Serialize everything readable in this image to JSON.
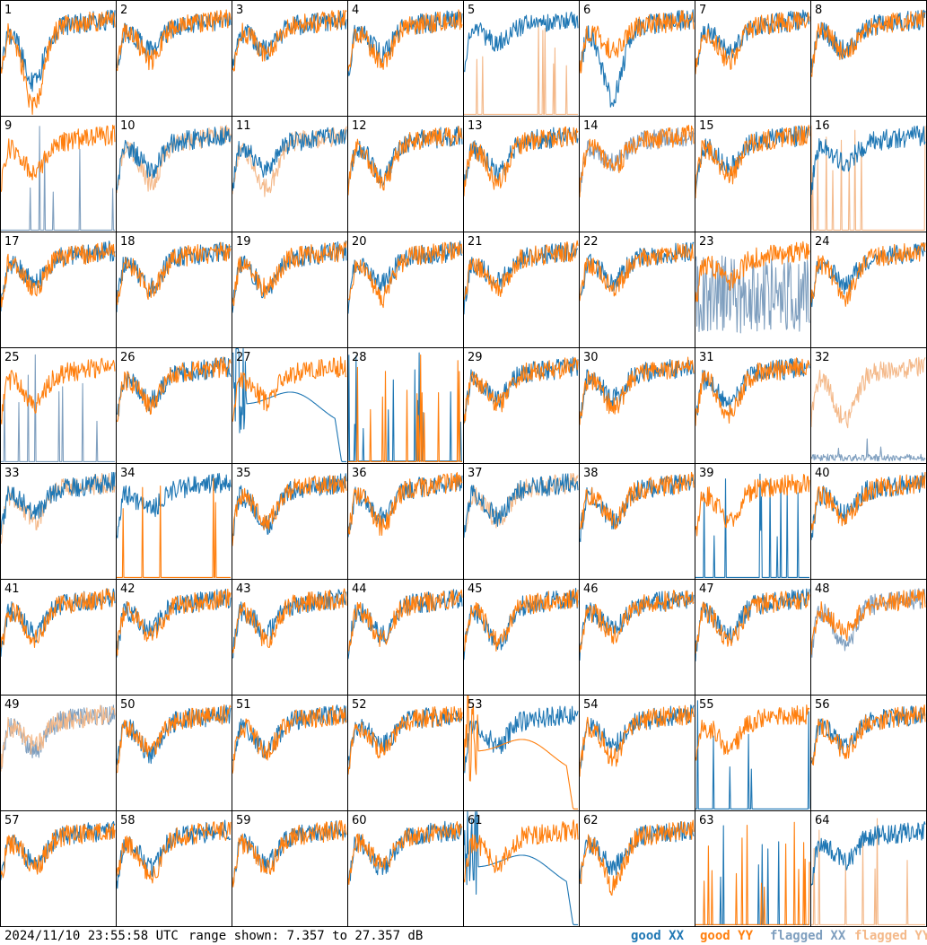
{
  "chart_data": {
    "type": "line",
    "panel_labels": [
      "1",
      "2",
      "3",
      "4",
      "5",
      "6",
      "7",
      "8",
      "9",
      "10",
      "11",
      "12",
      "13",
      "14",
      "15",
      "16",
      "17",
      "18",
      "19",
      "20",
      "21",
      "22",
      "23",
      "24",
      "25",
      "26",
      "27",
      "28",
      "29",
      "30",
      "31",
      "32",
      "33",
      "34",
      "35",
      "36",
      "37",
      "38",
      "39",
      "40",
      "41",
      "42",
      "43",
      "44",
      "45",
      "46",
      "47",
      "48",
      "49",
      "50",
      "51",
      "52",
      "53",
      "54",
      "55",
      "56",
      "57",
      "58",
      "59",
      "60",
      "61",
      "62",
      "63",
      "64"
    ],
    "ylim": [
      7.357,
      27.357
    ],
    "legend": [
      "good XX",
      "good YY",
      "flagged XX",
      "flagged YY"
    ],
    "colors": {
      "good_xx": "#1f77b4",
      "good_yy": "#ff7f0e",
      "flagged_xx": "#7f9fbf",
      "flagged_yy": "#f4b98a"
    },
    "panels": [
      {
        "xx": "good",
        "yy": "good",
        "xxshape": "dip",
        "yyshape": "dip",
        "xxd": 0.7,
        "yyd": 1.0
      },
      {
        "xx": "good",
        "yy": "good",
        "xxshape": "normal",
        "yyshape": "normal",
        "xxd": 0.35,
        "yyd": 0.5
      },
      {
        "xx": "good",
        "yy": "good",
        "xxshape": "normal",
        "yyshape": "normal",
        "xxd": 0.35,
        "yyd": 0.4
      },
      {
        "xx": "good",
        "yy": "good",
        "xxshape": "normal",
        "yyshape": "normal",
        "xxd": 0.4,
        "yyd": 0.55
      },
      {
        "xx": "good",
        "yy": "flagged",
        "xxshape": "normal",
        "yyshape": "spikes",
        "xxd": 0.2,
        "yyd": 0.0
      },
      {
        "xx": "good",
        "yy": "good",
        "xxshape": "dip",
        "yyshape": "normal",
        "xxd": 0.9,
        "yyd": 0.35
      },
      {
        "xx": "good",
        "yy": "good",
        "xxshape": "normal",
        "yyshape": "normal",
        "xxd": 0.35,
        "yyd": 0.5
      },
      {
        "xx": "good",
        "yy": "good",
        "xxshape": "normal",
        "yyshape": "normal",
        "xxd": 0.35,
        "yyd": 0.4
      },
      {
        "xx": "flagged",
        "yy": "good",
        "xxshape": "spikes",
        "yyshape": "normal",
        "xxd": 0.0,
        "yyd": 0.45
      },
      {
        "xx": "good",
        "yy": "flagged",
        "xxshape": "normal",
        "yyshape": "normal",
        "xxd": 0.4,
        "yyd": 0.6
      },
      {
        "xx": "good",
        "yy": "flagged",
        "xxshape": "normal",
        "yyshape": "normal",
        "xxd": 0.4,
        "yyd": 0.7
      },
      {
        "xx": "good",
        "yy": "good",
        "xxshape": "normal",
        "yyshape": "normal",
        "xxd": 0.5,
        "yyd": 0.6
      },
      {
        "xx": "good",
        "yy": "good",
        "xxshape": "normal",
        "yyshape": "normal",
        "xxd": 0.45,
        "yyd": 0.6
      },
      {
        "xx": "flagged",
        "yy": "good",
        "xxshape": "normal",
        "yyshape": "normal",
        "xxd": 0.3,
        "yyd": 0.35
      },
      {
        "xx": "good",
        "yy": "good",
        "xxshape": "normal",
        "yyshape": "normal",
        "xxd": 0.35,
        "yyd": 0.5
      },
      {
        "xx": "good",
        "yy": "flagged",
        "xxshape": "normal",
        "yyshape": "spikes",
        "xxd": 0.3,
        "yyd": 0.0
      },
      {
        "xx": "good",
        "yy": "good",
        "xxshape": "normal",
        "yyshape": "normal",
        "xxd": 0.35,
        "yyd": 0.45
      },
      {
        "xx": "good",
        "yy": "good",
        "xxshape": "normal",
        "yyshape": "normal",
        "xxd": 0.45,
        "yyd": 0.5
      },
      {
        "xx": "good",
        "yy": "good",
        "xxshape": "normal",
        "yyshape": "normal",
        "xxd": 0.5,
        "yyd": 0.45
      },
      {
        "xx": "good",
        "yy": "good",
        "xxshape": "normal",
        "yyshape": "normal",
        "xxd": 0.35,
        "yyd": 0.6
      },
      {
        "xx": "good",
        "yy": "good",
        "xxshape": "normal",
        "yyshape": "normal",
        "xxd": 0.35,
        "yyd": 0.45
      },
      {
        "xx": "good",
        "yy": "good",
        "xxshape": "normal",
        "yyshape": "normal",
        "xxd": 0.35,
        "yyd": 0.45
      },
      {
        "xx": "flagged",
        "yy": "good",
        "xxshape": "noisy",
        "yyshape": "normal",
        "xxd": 0.0,
        "yyd": 0.35
      },
      {
        "xx": "good",
        "yy": "good",
        "xxshape": "normal",
        "yyshape": "normal",
        "xxd": 0.4,
        "yyd": 0.6
      },
      {
        "xx": "flagged",
        "yy": "good",
        "xxshape": "spikes",
        "yyshape": "normal",
        "xxd": 0.0,
        "yyd": 0.45
      },
      {
        "xx": "good",
        "yy": "good",
        "xxshape": "normal",
        "yyshape": "normal",
        "xxd": 0.4,
        "yyd": 0.45
      },
      {
        "xx": "good",
        "yy": "good",
        "xxshape": "smooth",
        "yyshape": "normal",
        "xxd": 0.0,
        "yyd": 0.4
      },
      {
        "xx": "good",
        "yy": "good",
        "xxshape": "flat",
        "yyshape": "spikes",
        "xxd": 0.0,
        "yyd": 0.0
      },
      {
        "xx": "good",
        "yy": "good",
        "xxshape": "normal",
        "yyshape": "normal",
        "xxd": 0.35,
        "yyd": 0.45
      },
      {
        "xx": "good",
        "yy": "good",
        "xxshape": "normal",
        "yyshape": "normal",
        "xxd": 0.35,
        "yyd": 0.5
      },
      {
        "xx": "good",
        "yy": "good",
        "xxshape": "normal",
        "yyshape": "normal",
        "xxd": 0.45,
        "yyd": 0.6
      },
      {
        "xx": "flagged",
        "yy": "flagged",
        "xxshape": "low",
        "yyshape": "normal",
        "xxd": 0.0,
        "yyd": 0.7
      },
      {
        "xx": "good",
        "yy": "flagged",
        "xxshape": "normal",
        "yyshape": "normal",
        "xxd": 0.35,
        "yyd": 0.45
      },
      {
        "xx": "good",
        "yy": "good",
        "xxshape": "normal",
        "yyshape": "spikes",
        "xxd": 0.3,
        "yyd": 0.0
      },
      {
        "xx": "good",
        "yy": "good",
        "xxshape": "normal",
        "yyshape": "normal",
        "xxd": 0.55,
        "yyd": 0.5
      },
      {
        "xx": "good",
        "yy": "good",
        "xxshape": "normal",
        "yyshape": "normal",
        "xxd": 0.4,
        "yyd": 0.55
      },
      {
        "xx": "good",
        "yy": "flagged",
        "xxshape": "normal",
        "yyshape": "normal",
        "xxd": 0.4,
        "yyd": 0.45
      },
      {
        "xx": "good",
        "yy": "good",
        "xxshape": "normal",
        "yyshape": "normal",
        "xxd": 0.45,
        "yyd": 0.45
      },
      {
        "xx": "good",
        "yy": "good",
        "xxshape": "spikes",
        "yyshape": "normal",
        "xxd": 0.0,
        "yyd": 0.45
      },
      {
        "xx": "good",
        "yy": "good",
        "xxshape": "normal",
        "yyshape": "normal",
        "xxd": 0.35,
        "yyd": 0.45
      },
      {
        "xx": "good",
        "yy": "good",
        "xxshape": "normal",
        "yyshape": "normal",
        "xxd": 0.4,
        "yyd": 0.5
      },
      {
        "xx": "good",
        "yy": "good",
        "xxshape": "normal",
        "yyshape": "normal",
        "xxd": 0.35,
        "yyd": 0.45
      },
      {
        "xx": "good",
        "yy": "good",
        "xxshape": "normal",
        "yyshape": "normal",
        "xxd": 0.4,
        "yyd": 0.5
      },
      {
        "xx": "good",
        "yy": "good",
        "xxshape": "normal",
        "yyshape": "normal",
        "xxd": 0.45,
        "yyd": 0.5
      },
      {
        "xx": "good",
        "yy": "good",
        "xxshape": "normal",
        "yyshape": "normal",
        "xxd": 0.6,
        "yyd": 0.55
      },
      {
        "xx": "good",
        "yy": "good",
        "xxshape": "normal",
        "yyshape": "normal",
        "xxd": 0.35,
        "yyd": 0.45
      },
      {
        "xx": "good",
        "yy": "good",
        "xxshape": "normal",
        "yyshape": "normal",
        "xxd": 0.45,
        "yyd": 0.55
      },
      {
        "xx": "flagged",
        "yy": "good",
        "xxshape": "normal",
        "yyshape": "normal",
        "xxd": 0.65,
        "yyd": 0.4
      },
      {
        "xx": "flagged",
        "yy": "flagged",
        "xxshape": "normal",
        "yyshape": "normal",
        "xxd": 0.45,
        "yyd": 0.35
      },
      {
        "xx": "good",
        "yy": "good",
        "xxshape": "normal",
        "yyshape": "normal",
        "xxd": 0.5,
        "yyd": 0.4
      },
      {
        "xx": "good",
        "yy": "good",
        "xxshape": "normal",
        "yyshape": "normal",
        "xxd": 0.45,
        "yyd": 0.45
      },
      {
        "xx": "good",
        "yy": "good",
        "xxshape": "normal",
        "yyshape": "normal",
        "xxd": 0.35,
        "yyd": 0.45
      },
      {
        "xx": "good",
        "yy": "good",
        "xxshape": "normal",
        "yyshape": "smooth",
        "xxd": 0.35,
        "yyd": 0.0
      },
      {
        "xx": "good",
        "yy": "good",
        "xxshape": "normal",
        "yyshape": "normal",
        "xxd": 0.35,
        "yyd": 0.55
      },
      {
        "xx": "good",
        "yy": "good",
        "xxshape": "spikes",
        "yyshape": "normal",
        "xxd": 0.0,
        "yyd": 0.4
      },
      {
        "xx": "good",
        "yy": "good",
        "xxshape": "normal",
        "yyshape": "normal",
        "xxd": 0.35,
        "yyd": 0.45
      },
      {
        "xx": "good",
        "yy": "good",
        "xxshape": "normal",
        "yyshape": "normal",
        "xxd": 0.4,
        "yyd": 0.45
      },
      {
        "xx": "good",
        "yy": "good",
        "xxshape": "normal",
        "yyshape": "normal",
        "xxd": 0.45,
        "yyd": 0.6
      },
      {
        "xx": "good",
        "yy": "good",
        "xxshape": "normal",
        "yyshape": "normal",
        "xxd": 0.4,
        "yyd": 0.5
      },
      {
        "xx": "good",
        "yy": "good",
        "xxshape": "normal",
        "yyshape": "normal",
        "xxd": 0.45,
        "yyd": 0.4
      },
      {
        "xx": "good",
        "yy": "good",
        "xxshape": "smooth",
        "yyshape": "normal",
        "xxd": 0.0,
        "yyd": 0.4
      },
      {
        "xx": "good",
        "yy": "good",
        "xxshape": "normal",
        "yyshape": "normal",
        "xxd": 0.45,
        "yyd": 0.75
      },
      {
        "xx": "good",
        "yy": "good",
        "xxshape": "spikes",
        "yyshape": "spikes",
        "xxd": 0.0,
        "yyd": 0.0
      },
      {
        "xx": "good",
        "yy": "flagged",
        "xxshape": "normal",
        "yyshape": "spikes",
        "xxd": 0.35,
        "yyd": 0.0
      }
    ]
  },
  "footer": {
    "timestamp": "2024/11/10 23:55:58 UTC",
    "range": "range shown: 7.357 to 27.357 dB",
    "legend_good_xx": "good XX",
    "legend_good_yy": "good YY",
    "legend_flagged_xx": "flagged XX",
    "legend_flagged_yy": "flagged YY"
  }
}
